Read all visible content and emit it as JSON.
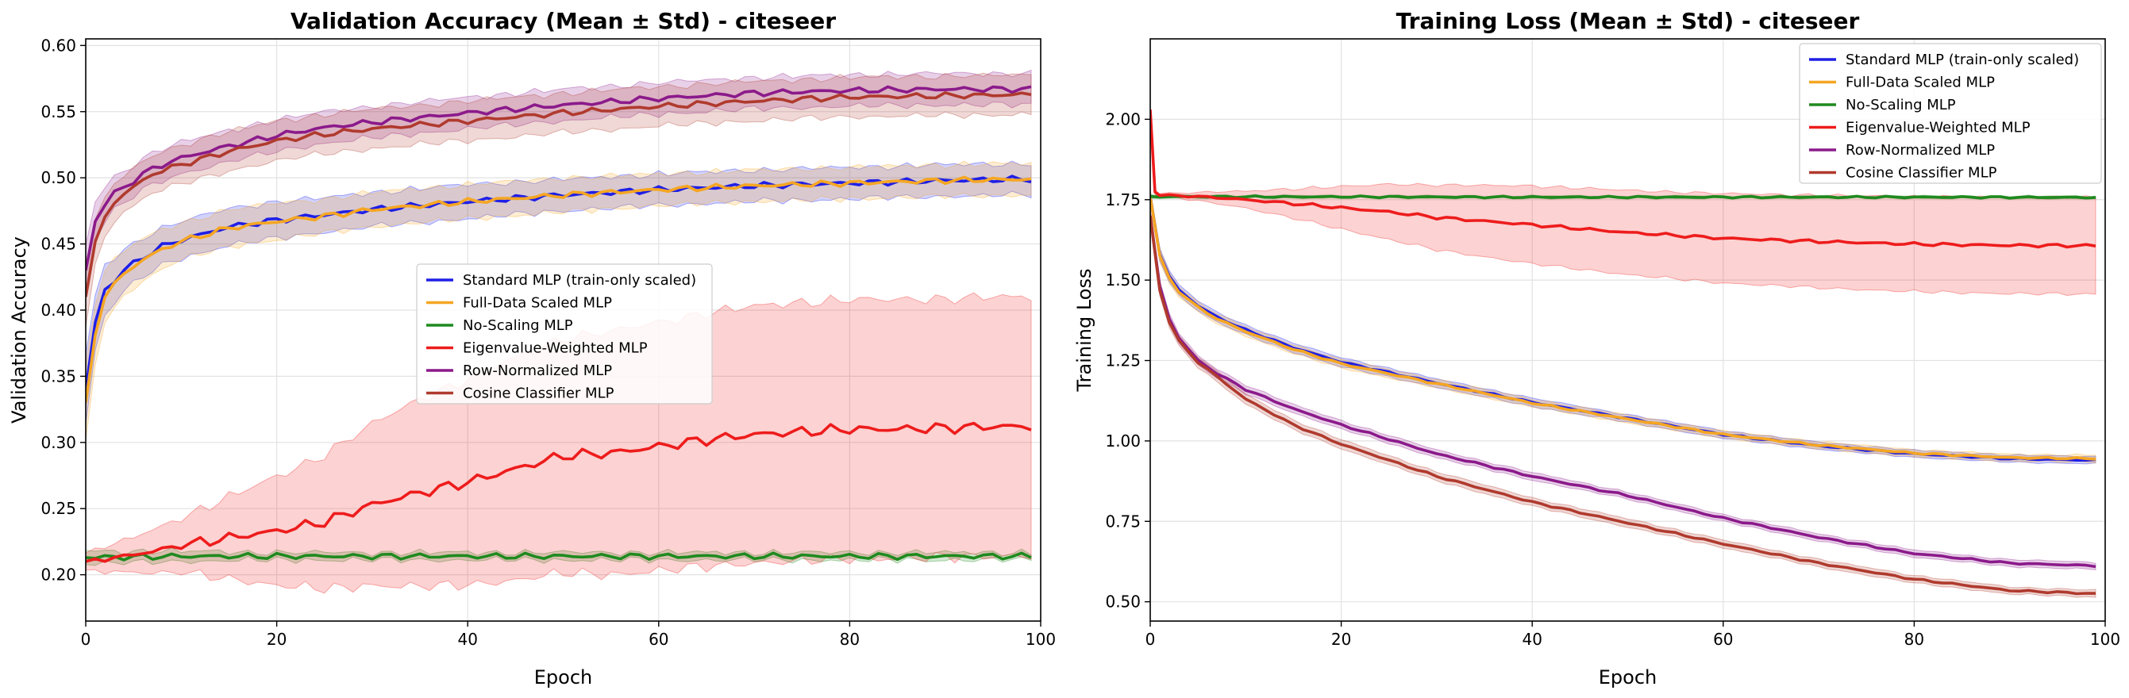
{
  "chart_data": [
    {
      "type": "line",
      "title": "Validation Accuracy (Mean ± Std) - citeseer",
      "xlabel": "Epoch",
      "ylabel": "Validation Accuracy",
      "xlim": [
        0,
        100
      ],
      "ylim": [
        0.165,
        0.605
      ],
      "xticks": [
        0,
        20,
        40,
        60,
        80,
        100
      ],
      "yticks": [
        0.2,
        0.25,
        0.3,
        0.35,
        0.4,
        0.45,
        0.5,
        0.55,
        0.6
      ],
      "ytick_labels": [
        "0.20",
        "0.25",
        "0.30",
        "0.35",
        "0.40",
        "0.45",
        "0.50",
        "0.55",
        "0.60"
      ],
      "grid": true,
      "legend_position": "center-right",
      "series": [
        {
          "name": "Standard MLP (train-only scaled)",
          "color": "#1f1fe6",
          "x": [
            0,
            1,
            2,
            4,
            6,
            8,
            10,
            15,
            20,
            25,
            30,
            40,
            50,
            60,
            70,
            80,
            90,
            99
          ],
          "mean": [
            0.34,
            0.39,
            0.415,
            0.43,
            0.44,
            0.448,
            0.453,
            0.463,
            0.468,
            0.472,
            0.476,
            0.482,
            0.487,
            0.491,
            0.494,
            0.496,
            0.498,
            0.499
          ],
          "std": [
            0.025,
            0.02,
            0.018,
            0.015,
            0.014,
            0.013,
            0.013,
            0.013,
            0.013,
            0.012,
            0.012,
            0.012,
            0.011,
            0.011,
            0.011,
            0.011,
            0.011,
            0.011
          ]
        },
        {
          "name": "Full-Data Scaled MLP",
          "color": "#f5a623",
          "x": [
            0,
            1,
            2,
            4,
            6,
            8,
            10,
            15,
            20,
            25,
            30,
            40,
            50,
            60,
            70,
            80,
            90,
            99
          ],
          "mean": [
            0.33,
            0.385,
            0.41,
            0.428,
            0.438,
            0.446,
            0.452,
            0.462,
            0.467,
            0.471,
            0.476,
            0.482,
            0.487,
            0.491,
            0.494,
            0.496,
            0.498,
            0.499
          ],
          "std": [
            0.028,
            0.022,
            0.019,
            0.016,
            0.015,
            0.014,
            0.013,
            0.013,
            0.013,
            0.012,
            0.012,
            0.012,
            0.012,
            0.011,
            0.011,
            0.011,
            0.011,
            0.011
          ]
        },
        {
          "name": "No-Scaling MLP",
          "color": "#1f8a1f",
          "x": [
            0,
            10,
            20,
            40,
            60,
            80,
            99
          ],
          "mean": [
            0.213,
            0.214,
            0.214,
            0.214,
            0.214,
            0.214,
            0.214
          ],
          "std": [
            0.004,
            0.003,
            0.002,
            0.002,
            0.002,
            0.002,
            0.002
          ]
        },
        {
          "name": "Eigenvalue-Weighted MLP",
          "color": "#ee1c1c",
          "x": [
            0,
            5,
            10,
            15,
            20,
            25,
            30,
            35,
            40,
            45,
            50,
            55,
            60,
            65,
            70,
            75,
            80,
            85,
            90,
            95,
            99
          ],
          "mean": [
            0.21,
            0.215,
            0.222,
            0.228,
            0.233,
            0.24,
            0.253,
            0.262,
            0.27,
            0.28,
            0.29,
            0.292,
            0.297,
            0.302,
            0.306,
            0.308,
            0.31,
            0.31,
            0.311,
            0.312,
            0.312
          ],
          "std": [
            0.006,
            0.012,
            0.02,
            0.03,
            0.04,
            0.05,
            0.06,
            0.07,
            0.077,
            0.083,
            0.088,
            0.091,
            0.093,
            0.095,
            0.096,
            0.097,
            0.097,
            0.097,
            0.097,
            0.097,
            0.097
          ]
        },
        {
          "name": "Row-Normalized MLP",
          "color": "#8b1a8b",
          "x": [
            0,
            1,
            2,
            3,
            5,
            7,
            10,
            15,
            20,
            25,
            30,
            40,
            50,
            60,
            70,
            80,
            90,
            99
          ],
          "mean": [
            0.43,
            0.468,
            0.48,
            0.488,
            0.498,
            0.507,
            0.515,
            0.524,
            0.532,
            0.538,
            0.542,
            0.549,
            0.555,
            0.56,
            0.564,
            0.566,
            0.567,
            0.567
          ],
          "std": [
            0.018,
            0.014,
            0.012,
            0.012,
            0.011,
            0.011,
            0.011,
            0.011,
            0.011,
            0.011,
            0.011,
            0.011,
            0.011,
            0.011,
            0.011,
            0.011,
            0.011,
            0.011
          ]
        },
        {
          "name": "Cosine Classifier MLP",
          "color": "#b03a2e",
          "x": [
            0,
            1,
            2,
            3,
            5,
            7,
            10,
            15,
            20,
            25,
            30,
            40,
            50,
            60,
            70,
            80,
            90,
            99
          ],
          "mean": [
            0.41,
            0.45,
            0.47,
            0.482,
            0.493,
            0.503,
            0.51,
            0.52,
            0.528,
            0.533,
            0.537,
            0.543,
            0.549,
            0.554,
            0.558,
            0.561,
            0.562,
            0.563
          ],
          "std": [
            0.022,
            0.016,
            0.014,
            0.013,
            0.013,
            0.013,
            0.014,
            0.014,
            0.014,
            0.014,
            0.014,
            0.014,
            0.014,
            0.014,
            0.014,
            0.014,
            0.014,
            0.014
          ]
        }
      ]
    },
    {
      "type": "line",
      "title": "Training Loss (Mean ± Std) - citeseer",
      "xlabel": "Epoch",
      "ylabel": "Training Loss",
      "xlim": [
        0,
        100
      ],
      "ylim": [
        0.44,
        2.25
      ],
      "xticks": [
        0,
        20,
        40,
        60,
        80,
        100
      ],
      "yticks": [
        0.5,
        0.75,
        1.0,
        1.25,
        1.5,
        1.75,
        2.0
      ],
      "ytick_labels": [
        "0.50",
        "0.75",
        "1.00",
        "1.25",
        "1.50",
        "1.75",
        "2.00"
      ],
      "grid": true,
      "legend_position": "top-right",
      "series": [
        {
          "name": "Standard MLP (train-only scaled)",
          "color": "#1f1fe6",
          "x": [
            0,
            1,
            2,
            3,
            5,
            7,
            10,
            15,
            20,
            30,
            40,
            50,
            60,
            70,
            80,
            90,
            99
          ],
          "mean": [
            1.76,
            1.58,
            1.51,
            1.47,
            1.42,
            1.385,
            1.345,
            1.29,
            1.245,
            1.18,
            1.12,
            1.07,
            1.02,
            0.985,
            0.96,
            0.945,
            0.94
          ],
          "std": [
            0.02,
            0.018,
            0.016,
            0.015,
            0.014,
            0.014,
            0.014,
            0.013,
            0.013,
            0.012,
            0.012,
            0.011,
            0.011,
            0.01,
            0.01,
            0.01,
            0.01
          ]
        },
        {
          "name": "Full-Data Scaled MLP",
          "color": "#f5a623",
          "x": [
            0,
            1,
            2,
            3,
            5,
            7,
            10,
            15,
            20,
            30,
            40,
            50,
            60,
            70,
            80,
            90,
            99
          ],
          "mean": [
            1.76,
            1.575,
            1.505,
            1.465,
            1.415,
            1.38,
            1.34,
            1.285,
            1.24,
            1.178,
            1.118,
            1.068,
            1.02,
            0.987,
            0.962,
            0.948,
            0.945
          ],
          "std": [
            0.02,
            0.018,
            0.016,
            0.015,
            0.014,
            0.014,
            0.013,
            0.013,
            0.012,
            0.012,
            0.011,
            0.011,
            0.01,
            0.01,
            0.01,
            0.01,
            0.01
          ]
        },
        {
          "name": "No-Scaling MLP",
          "color": "#1f8a1f",
          "x": [
            0,
            10,
            20,
            40,
            60,
            80,
            99
          ],
          "mean": [
            1.76,
            1.759,
            1.759,
            1.758,
            1.758,
            1.758,
            1.757
          ],
          "std": [
            0.004,
            0.003,
            0.003,
            0.003,
            0.003,
            0.003,
            0.003
          ]
        },
        {
          "name": "Eigenvalue-Weighted MLP",
          "color": "#ee1c1c",
          "x": [
            0,
            0.5,
            1,
            3,
            5,
            10,
            15,
            20,
            25,
            30,
            40,
            50,
            60,
            70,
            80,
            90,
            99
          ],
          "mean": [
            2.03,
            1.775,
            1.765,
            1.762,
            1.76,
            1.75,
            1.738,
            1.725,
            1.712,
            1.695,
            1.672,
            1.648,
            1.63,
            1.62,
            1.612,
            1.608,
            1.607
          ],
          "std": [
            0.005,
            0.005,
            0.005,
            0.008,
            0.012,
            0.025,
            0.045,
            0.065,
            0.085,
            0.1,
            0.12,
            0.13,
            0.138,
            0.143,
            0.147,
            0.149,
            0.15
          ]
        },
        {
          "name": "Row-Normalized MLP",
          "color": "#8b1a8b",
          "x": [
            0,
            1,
            2,
            3,
            5,
            7,
            10,
            15,
            20,
            30,
            40,
            50,
            60,
            70,
            80,
            90,
            99
          ],
          "mean": [
            1.7,
            1.48,
            1.38,
            1.32,
            1.25,
            1.21,
            1.16,
            1.1,
            1.05,
            0.96,
            0.89,
            0.83,
            0.76,
            0.7,
            0.65,
            0.62,
            0.612
          ],
          "std": [
            0.018,
            0.016,
            0.015,
            0.014,
            0.013,
            0.013,
            0.013,
            0.012,
            0.012,
            0.011,
            0.011,
            0.01,
            0.01,
            0.01,
            0.01,
            0.01,
            0.01
          ]
        },
        {
          "name": "Cosine Classifier MLP",
          "color": "#b03a2e",
          "x": [
            0,
            1,
            2,
            3,
            5,
            7,
            10,
            15,
            20,
            30,
            40,
            50,
            60,
            70,
            80,
            90,
            99
          ],
          "mean": [
            1.7,
            1.47,
            1.37,
            1.31,
            1.245,
            1.2,
            1.13,
            1.05,
            0.99,
            0.89,
            0.81,
            0.745,
            0.68,
            0.62,
            0.57,
            0.535,
            0.525
          ],
          "std": [
            0.018,
            0.016,
            0.016,
            0.015,
            0.015,
            0.015,
            0.014,
            0.014,
            0.013,
            0.013,
            0.012,
            0.012,
            0.011,
            0.011,
            0.011,
            0.01,
            0.01
          ]
        }
      ]
    }
  ]
}
